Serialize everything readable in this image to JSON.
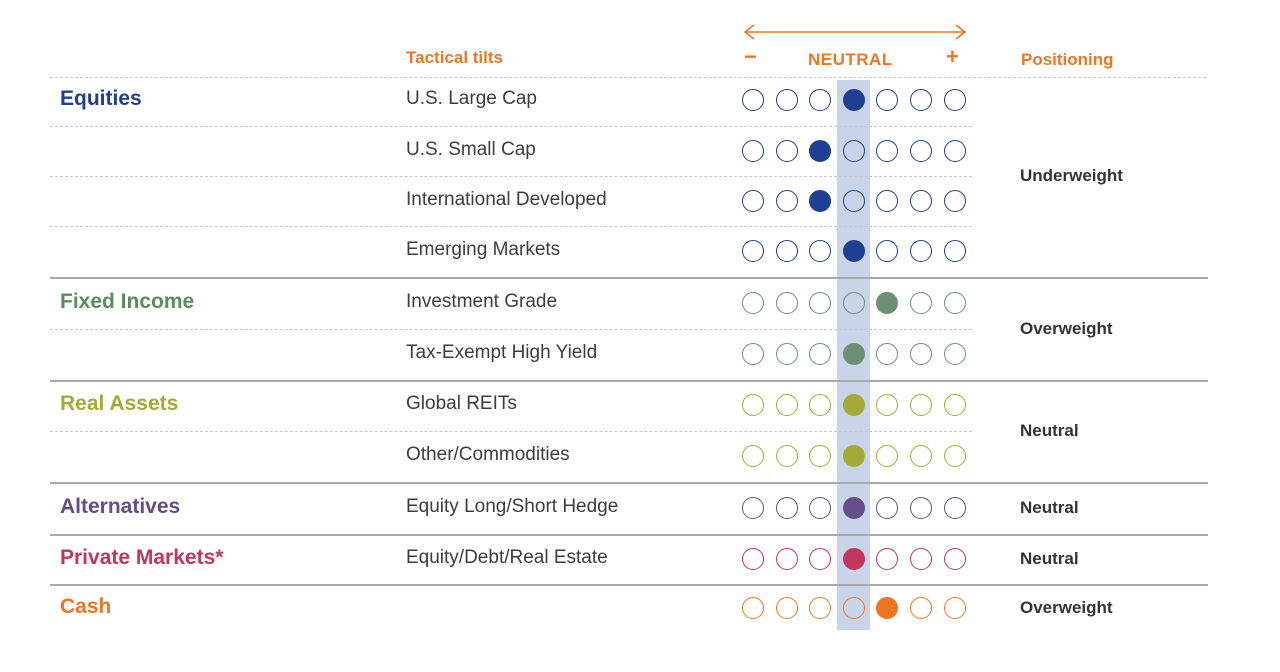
{
  "header": {
    "tactical_tilts": "Tactical tilts",
    "minus": "−",
    "neutral": "NEUTRAL",
    "plus": "+",
    "positioning": "Positioning"
  },
  "colors": {
    "orange": "#ee7623",
    "neutral_band": "#c9d4e9",
    "equities": "#1f3f93",
    "fixed_income": "#5c8a61",
    "fixed_income_dot": "#6d8f74",
    "real_assets": "#a4aa35",
    "alternatives": "#634e88",
    "private_markets": "#c0365f",
    "cash": "#ee7623"
  },
  "chart_data": {
    "type": "table",
    "scale": {
      "min": -3,
      "max": 3,
      "neutral": 0,
      "steps": 7
    },
    "groups": [
      {
        "name": "Equities",
        "positioning": "Underweight",
        "color": "#1f3f93",
        "rows": [
          {
            "label": "U.S. Large Cap",
            "tilt": 0
          },
          {
            "label": "U.S. Small Cap",
            "tilt": -1
          },
          {
            "label": "International Developed",
            "tilt": -1
          },
          {
            "label": "Emerging Markets",
            "tilt": 0
          }
        ]
      },
      {
        "name": "Fixed Income",
        "positioning": "Overweight",
        "color": "#6d8f74",
        "rows": [
          {
            "label": "Investment Grade",
            "tilt": 1
          },
          {
            "label": "Tax-Exempt High Yield",
            "tilt": 0
          }
        ]
      },
      {
        "name": "Real Assets",
        "positioning": "Neutral",
        "color": "#a4aa35",
        "rows": [
          {
            "label": "Global REITs",
            "tilt": 0
          },
          {
            "label": "Other/Commodities",
            "tilt": 0
          }
        ]
      },
      {
        "name": "Alternatives",
        "positioning": "Neutral",
        "color": "#634e88",
        "rows": [
          {
            "label": "Equity Long/Short Hedge",
            "tilt": 0
          }
        ]
      },
      {
        "name": "Private Markets*",
        "positioning": "Neutral",
        "color": "#c0365f",
        "rows": [
          {
            "label": "Equity/Debt/Real Estate",
            "tilt": 0
          }
        ]
      },
      {
        "name": "Cash",
        "positioning": "Overweight",
        "color": "#ee7623",
        "rows": [
          {
            "label": "",
            "tilt": 1
          }
        ]
      }
    ]
  }
}
